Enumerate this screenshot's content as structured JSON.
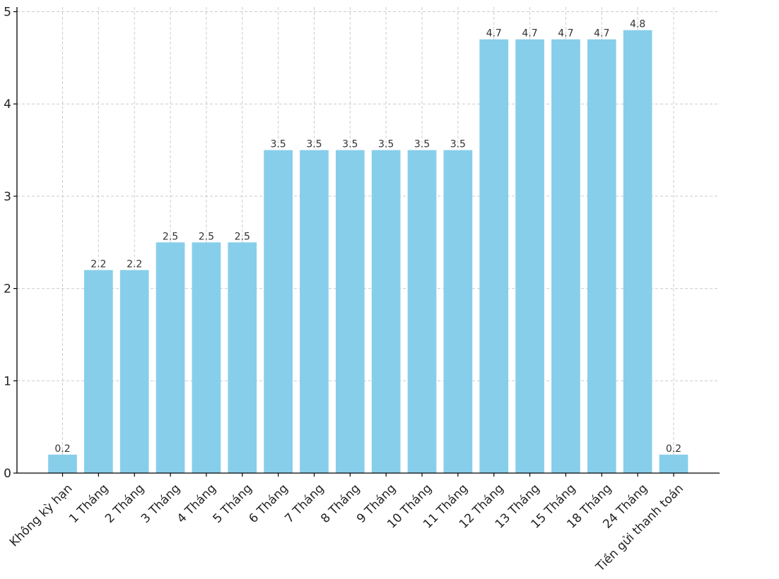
{
  "chart_data": {
    "type": "bar",
    "categories": [
      "Không kỳ hạn",
      "1 Tháng",
      "2 Tháng",
      "3 Tháng",
      "4 Tháng",
      "5 Tháng",
      "6 Tháng",
      "7 Tháng",
      "8 Tháng",
      "9 Tháng",
      "10 Tháng",
      "11 Tháng",
      "12 Tháng",
      "13 Tháng",
      "15 Tháng",
      "18 Tháng",
      "24 Tháng",
      "Tiền gửi thanh toán"
    ],
    "values": [
      0.2,
      2.2,
      2.2,
      2.5,
      2.5,
      2.5,
      3.5,
      3.5,
      3.5,
      3.5,
      3.5,
      3.5,
      4.7,
      4.7,
      4.7,
      4.7,
      4.8,
      0.2
    ],
    "data_labels": [
      "0.2",
      "2.2",
      "2.2",
      "2.5",
      "2.5",
      "2.5",
      "3.5",
      "3.5",
      "3.5",
      "3.5",
      "3.5",
      "3.5",
      "4.7",
      "4.7",
      "4.7",
      "4.7",
      "4.8",
      "0.2"
    ],
    "yticks": [
      "0",
      "1",
      "2",
      "3",
      "4",
      "5"
    ],
    "ylim": [
      0,
      5.05
    ],
    "title": "",
    "xlabel": "",
    "ylabel": "",
    "grid": true,
    "bar_color": "#87CEEB",
    "x_tick_rotation_deg": 45
  }
}
